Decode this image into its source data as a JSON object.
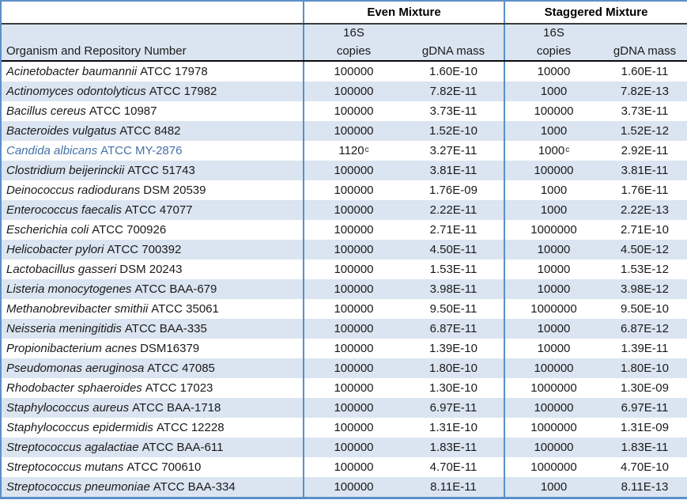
{
  "table": {
    "headers": {
      "organism_col": "Organism and Repository Number",
      "even_group": "Even Mixture",
      "staggered_group": "Staggered Mixture",
      "s16": "16S",
      "copies": "copies",
      "gdna": "gDNA mass"
    },
    "colors": {
      "border_blue": "#5b8fc9",
      "stripe_light_blue": "#dbe5f1",
      "highlight_row_text": "#4472a8",
      "header_separator_dark": "#3c3c3c",
      "body_text": "#1a1a1a"
    },
    "rows": [
      {
        "species": "Acinetobacter baumannii",
        "repo": "ATCC 17978",
        "even_copies": "100000",
        "even_copies_sup": "",
        "even_mass": "1.60E-10",
        "stag_copies": "10000",
        "stag_copies_sup": "",
        "stag_mass": "1.60E-11",
        "highlighted": false
      },
      {
        "species": "Actinomyces odontolyticus",
        "repo": "ATCC 17982",
        "even_copies": "100000",
        "even_copies_sup": "",
        "even_mass": "7.82E-11",
        "stag_copies": "1000",
        "stag_copies_sup": "",
        "stag_mass": "7.82E-13",
        "highlighted": false
      },
      {
        "species": "Bacillus cereus",
        "repo": "ATCC 10987",
        "even_copies": "100000",
        "even_copies_sup": "",
        "even_mass": "3.73E-11",
        "stag_copies": "100000",
        "stag_copies_sup": "",
        "stag_mass": "3.73E-11",
        "highlighted": false
      },
      {
        "species": "Bacteroides vulgatus",
        "repo": "ATCC 8482",
        "even_copies": "100000",
        "even_copies_sup": "",
        "even_mass": "1.52E-10",
        "stag_copies": "1000",
        "stag_copies_sup": "",
        "stag_mass": "1.52E-12",
        "highlighted": false
      },
      {
        "species": "Candida albicans",
        "repo": "ATCC MY-2876",
        "even_copies": "1120",
        "even_copies_sup": "c",
        "even_mass": "3.27E-11",
        "stag_copies": "1000",
        "stag_copies_sup": "c",
        "stag_mass": "2.92E-11",
        "highlighted": true
      },
      {
        "species": "Clostridium beijerinckii",
        "repo": "ATCC 51743",
        "even_copies": "100000",
        "even_copies_sup": "",
        "even_mass": "3.81E-11",
        "stag_copies": "100000",
        "stag_copies_sup": "",
        "stag_mass": "3.81E-11",
        "highlighted": false
      },
      {
        "species": "Deinococcus radiodurans",
        "repo": "DSM 20539",
        "even_copies": "100000",
        "even_copies_sup": "",
        "even_mass": "1.76E-09",
        "stag_copies": "1000",
        "stag_copies_sup": "",
        "stag_mass": "1.76E-11",
        "highlighted": false
      },
      {
        "species": "Enterococcus faecalis",
        "repo": "ATCC 47077",
        "even_copies": "100000",
        "even_copies_sup": "",
        "even_mass": "2.22E-11",
        "stag_copies": "1000",
        "stag_copies_sup": "",
        "stag_mass": "2.22E-13",
        "highlighted": false
      },
      {
        "species": "Escherichia coli",
        "repo": "ATCC 700926",
        "even_copies": "100000",
        "even_copies_sup": "",
        "even_mass": "2.71E-11",
        "stag_copies": "1000000",
        "stag_copies_sup": "",
        "stag_mass": "2.71E-10",
        "highlighted": false
      },
      {
        "species": "Helicobacter pylori",
        "repo": "ATCC 700392",
        "even_copies": "100000",
        "even_copies_sup": "",
        "even_mass": "4.50E-11",
        "stag_copies": "10000",
        "stag_copies_sup": "",
        "stag_mass": "4.50E-12",
        "highlighted": false
      },
      {
        "species": "Lactobacillus gasseri",
        "repo": "DSM 20243",
        "even_copies": "100000",
        "even_copies_sup": "",
        "even_mass": "1.53E-11",
        "stag_copies": "10000",
        "stag_copies_sup": "",
        "stag_mass": "1.53E-12",
        "highlighted": false
      },
      {
        "species": "Listeria monocytogenes",
        "repo": "ATCC BAA-679",
        "even_copies": "100000",
        "even_copies_sup": "",
        "even_mass": "3.98E-11",
        "stag_copies": "10000",
        "stag_copies_sup": "",
        "stag_mass": "3.98E-12",
        "highlighted": false
      },
      {
        "species": "Methanobrevibacter smithii",
        "repo": "ATCC 35061",
        "even_copies": "100000",
        "even_copies_sup": "",
        "even_mass": "9.50E-11",
        "stag_copies": "1000000",
        "stag_copies_sup": "",
        "stag_mass": "9.50E-10",
        "highlighted": false
      },
      {
        "species": "Neisseria meningitidis",
        "repo": "ATCC BAA-335",
        "even_copies": "100000",
        "even_copies_sup": "",
        "even_mass": "6.87E-11",
        "stag_copies": "10000",
        "stag_copies_sup": "",
        "stag_mass": "6.87E-12",
        "highlighted": false
      },
      {
        "species": "Propionibacterium acnes",
        "repo": "DSM16379",
        "even_copies": "100000",
        "even_copies_sup": "",
        "even_mass": "1.39E-10",
        "stag_copies": "10000",
        "stag_copies_sup": "",
        "stag_mass": "1.39E-11",
        "highlighted": false
      },
      {
        "species": "Pseudomonas aeruginosa",
        "repo": "ATCC 47085",
        "even_copies": "100000",
        "even_copies_sup": "",
        "even_mass": "1.80E-10",
        "stag_copies": "100000",
        "stag_copies_sup": "",
        "stag_mass": "1.80E-10",
        "highlighted": false
      },
      {
        "species": "Rhodobacter sphaeroides",
        "repo": "ATCC 17023",
        "even_copies": "100000",
        "even_copies_sup": "",
        "even_mass": "1.30E-10",
        "stag_copies": "1000000",
        "stag_copies_sup": "",
        "stag_mass": "1.30E-09",
        "highlighted": false
      },
      {
        "species": "Staphylococcus aureus",
        "repo": "ATCC BAA-1718",
        "even_copies": "100000",
        "even_copies_sup": "",
        "even_mass": "6.97E-11",
        "stag_copies": "100000",
        "stag_copies_sup": "",
        "stag_mass": "6.97E-11",
        "highlighted": false
      },
      {
        "species": "Staphylococcus epidermidis",
        "repo": "ATCC 12228",
        "even_copies": "100000",
        "even_copies_sup": "",
        "even_mass": "1.31E-10",
        "stag_copies": "1000000",
        "stag_copies_sup": "",
        "stag_mass": "1.31E-09",
        "highlighted": false
      },
      {
        "species": "Streptococcus agalactiae",
        "repo": "ATCC BAA-611",
        "even_copies": "100000",
        "even_copies_sup": "",
        "even_mass": "1.83E-11",
        "stag_copies": "100000",
        "stag_copies_sup": "",
        "stag_mass": "1.83E-11",
        "highlighted": false
      },
      {
        "species": "Streptococcus mutans",
        "repo": "ATCC 700610",
        "even_copies": "100000",
        "even_copies_sup": "",
        "even_mass": "4.70E-11",
        "stag_copies": "1000000",
        "stag_copies_sup": "",
        "stag_mass": "4.70E-10",
        "highlighted": false
      },
      {
        "species": "Streptococcus pneumoniae",
        "repo": "ATCC BAA-334",
        "even_copies": "100000",
        "even_copies_sup": "",
        "even_mass": "8.11E-11",
        "stag_copies": "1000",
        "stag_copies_sup": "",
        "stag_mass": "8.11E-13",
        "highlighted": false
      }
    ]
  }
}
